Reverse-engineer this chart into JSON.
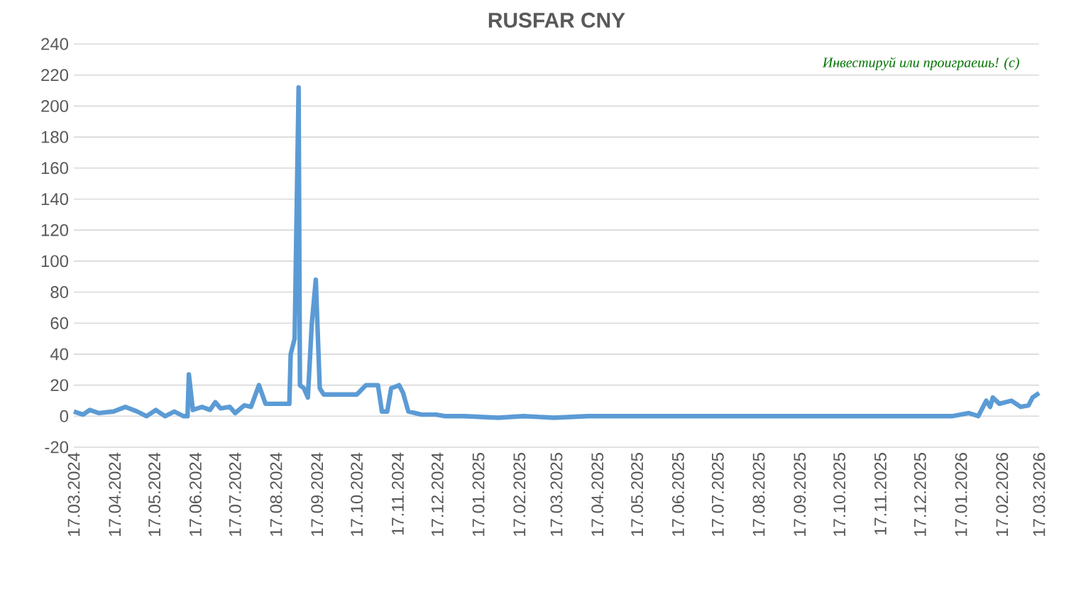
{
  "chart_data": {
    "type": "line",
    "title": "RUSFAR CNY",
    "annotations": [
      "Инвестируй или проиграешь! (с)"
    ],
    "x": [
      "2024-03-17",
      "2024-03-24",
      "2024-03-29",
      "2024-04-05",
      "2024-04-16",
      "2024-04-25",
      "2024-05-04",
      "2024-05-11",
      "2024-05-18",
      "2024-05-25",
      "2024-06-01",
      "2024-06-08",
      "2024-06-11",
      "2024-06-12",
      "2024-06-15",
      "2024-06-22",
      "2024-06-28",
      "2024-07-02",
      "2024-07-06",
      "2024-07-13",
      "2024-07-17",
      "2024-07-24",
      "2024-07-29",
      "2024-08-04",
      "2024-08-09",
      "2024-08-21",
      "2024-08-27",
      "2024-08-28",
      "2024-08-31",
      "2024-09-03",
      "2024-09-04",
      "2024-09-07",
      "2024-09-10",
      "2024-09-13",
      "2024-09-16",
      "2024-09-19",
      "2024-09-22",
      "2024-09-29",
      "2024-10-17",
      "2024-10-24",
      "2024-11-02",
      "2024-11-05",
      "2024-11-09",
      "2024-11-12",
      "2024-11-18",
      "2024-11-21",
      "2024-11-25",
      "2024-11-30",
      "2024-12-05",
      "2024-12-16",
      "2024-12-23",
      "2025-01-06",
      "2025-02-01",
      "2025-02-20",
      "2025-03-15",
      "2025-04-10",
      "2025-05-05",
      "2025-06-01",
      "2025-07-01",
      "2025-08-01",
      "2025-09-01",
      "2025-10-01",
      "2025-11-01",
      "2025-12-01",
      "2026-01-10",
      "2026-01-23",
      "2026-01-30",
      "2026-02-05",
      "2026-02-08",
      "2026-02-10",
      "2026-02-15",
      "2026-02-24",
      "2026-03-03",
      "2026-03-09",
      "2026-03-12",
      "2026-03-17"
    ],
    "series": [
      {
        "color": "#5b9bd5",
        "values": [
          3,
          1,
          4,
          2,
          3,
          6,
          3,
          0,
          4,
          0,
          3,
          0,
          0,
          27,
          4,
          6,
          4,
          9,
          5,
          6,
          2,
          7,
          6,
          20,
          8,
          8,
          8,
          40,
          50,
          212,
          20,
          18,
          12,
          60,
          88,
          18,
          14,
          14,
          14,
          20,
          20,
          3,
          3,
          18,
          20,
          15,
          3,
          2,
          1,
          1,
          0,
          0,
          -1,
          0,
          -1,
          0,
          0,
          0,
          0,
          0,
          0,
          0,
          0,
          0,
          0,
          2,
          0,
          10,
          6,
          12,
          8,
          10,
          6,
          7,
          12,
          15
        ]
      }
    ],
    "xlim": [
      "2024-03-17",
      "2026-03-17"
    ],
    "xticks": [
      {
        "value": "2024-03-17",
        "label": "17.03.2024"
      },
      {
        "value": "2024-04-17",
        "label": "17.04.2024"
      },
      {
        "value": "2024-05-17",
        "label": "17.05.2024"
      },
      {
        "value": "2024-06-17",
        "label": "17.06.2024"
      },
      {
        "value": "2024-07-17",
        "label": "17.07.2024"
      },
      {
        "value": "2024-08-17",
        "label": "17.08.2024"
      },
      {
        "value": "2024-09-17",
        "label": "17.09.2024"
      },
      {
        "value": "2024-10-17",
        "label": "17.10.2024"
      },
      {
        "value": "2024-11-17",
        "label": "17.11.2024"
      },
      {
        "value": "2024-12-17",
        "label": "17.12.2024"
      },
      {
        "value": "2025-01-17",
        "label": "17.01.2025"
      },
      {
        "value": "2025-02-17",
        "label": "17.02.2025"
      },
      {
        "value": "2025-03-17",
        "label": "17.03.2025"
      },
      {
        "value": "2025-04-17",
        "label": "17.04.2025"
      },
      {
        "value": "2025-05-17",
        "label": "17.05.2025"
      },
      {
        "value": "2025-06-17",
        "label": "17.06.2025"
      },
      {
        "value": "2025-07-17",
        "label": "17.07.2025"
      },
      {
        "value": "2025-08-17",
        "label": "17.08.2025"
      },
      {
        "value": "2025-09-17",
        "label": "17.09.2025"
      },
      {
        "value": "2025-10-17",
        "label": "17.10.2025"
      },
      {
        "value": "2025-11-17",
        "label": "17.11.2025"
      },
      {
        "value": "2025-12-17",
        "label": "17.12.2025"
      },
      {
        "value": "2026-01-17",
        "label": "17.01.2026"
      },
      {
        "value": "2026-02-17",
        "label": "17.02.2026"
      },
      {
        "value": "2026-03-17",
        "label": "17.03.2026"
      }
    ],
    "ylim": [
      -20,
      240
    ],
    "yticks": [
      -20,
      0,
      20,
      40,
      60,
      80,
      100,
      120,
      140,
      160,
      180,
      200,
      220,
      240
    ],
    "grid": "y",
    "legend": false,
    "marker": "none",
    "line_style": "solid"
  }
}
